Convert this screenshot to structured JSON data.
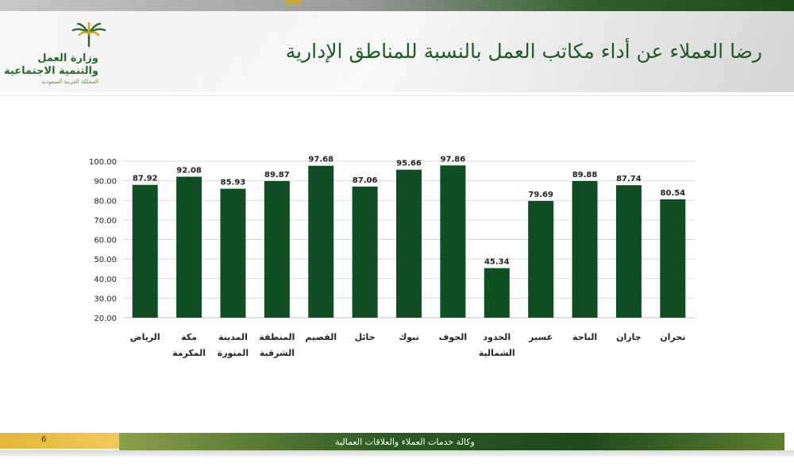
{
  "slide": {
    "title": "رضا العملاء عن أداء مكاتب العمل بالنسبة للمناطق الإدارية",
    "page_number": "6",
    "footer_text": "وكالة خدمات العملاء والعلاقات العمالية"
  },
  "logo": {
    "line1": "وزارة العمل",
    "line2": "والتنمية الاجتماعية",
    "line3": "المملكة العربية السعودية",
    "icon": "palm-icon",
    "colors": {
      "green": "#2b6a2e",
      "gold": "#d4a420"
    }
  },
  "chart_data": {
    "type": "bar",
    "categories": [
      [
        "الرياض"
      ],
      [
        "مكة",
        "المكرمة"
      ],
      [
        "المدينة",
        "المنورة"
      ],
      [
        "المنطقة",
        "الشرقية"
      ],
      [
        "القصيم"
      ],
      [
        "حائل"
      ],
      [
        "تبوك"
      ],
      [
        "الجوف"
      ],
      [
        "الحدود",
        "الشمالية"
      ],
      [
        "عسير"
      ],
      [
        "الباحة"
      ],
      [
        "جازان"
      ],
      [
        "نجران"
      ]
    ],
    "values": [
      87.92,
      92.08,
      85.93,
      89.87,
      97.68,
      87.06,
      95.66,
      97.86,
      45.34,
      79.69,
      89.88,
      87.74,
      80.54
    ],
    "value_labels": [
      "87.92",
      "92.08",
      "85.93",
      "89.87",
      "97.68",
      "87.06",
      "95.66",
      "97.86",
      "45.34",
      "79.69",
      "89.88",
      "87.74",
      "80.54"
    ],
    "yticks": [
      "20.00",
      "30.00",
      "40.00",
      "50.00",
      "60.00",
      "70.00",
      "80.00",
      "90.00",
      "100.00"
    ],
    "ylim": [
      20,
      100
    ],
    "grid": true,
    "bar_color": "#0f4d22",
    "grid_color": "#d9d9d9",
    "legend": "none"
  }
}
